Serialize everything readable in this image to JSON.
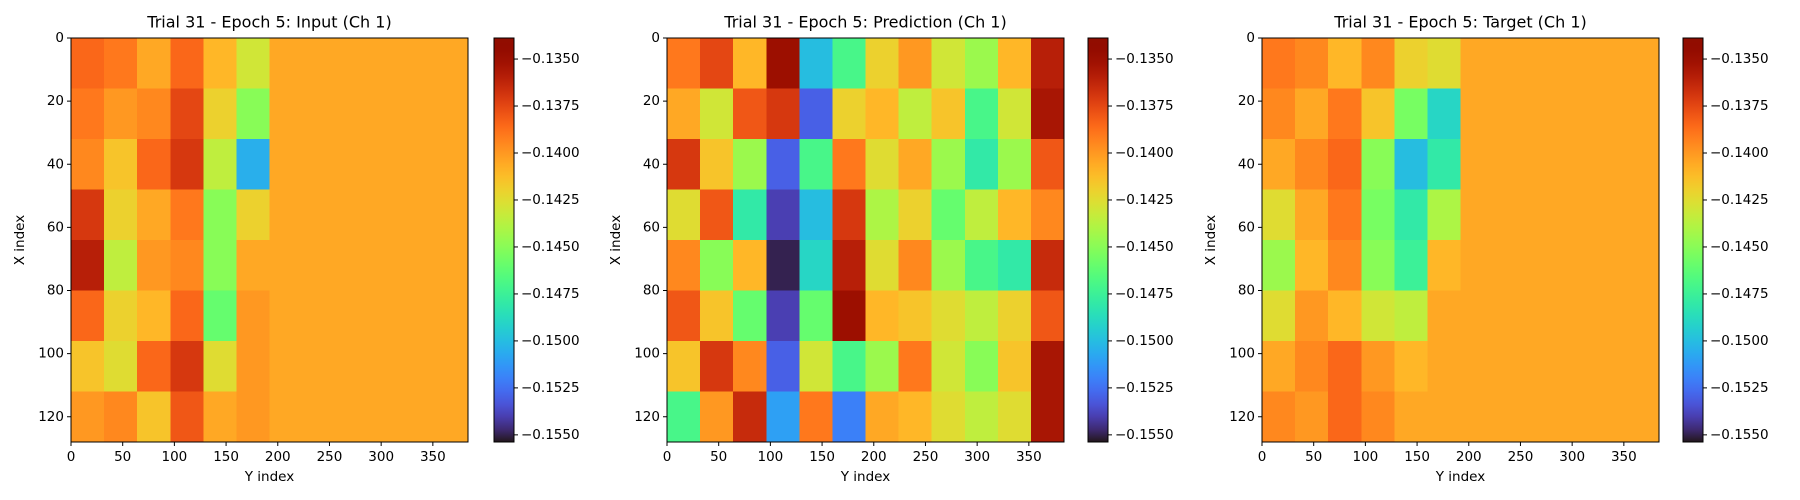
{
  "chart_data": [
    {
      "type": "heatmap",
      "title": "Trial 31 - Epoch 5: Input (Ch 1)",
      "x_label": "Y index",
      "y_label": "X index",
      "xlim": [
        0,
        384
      ],
      "ylim": [
        128,
        0
      ],
      "xticks": [
        0,
        50,
        100,
        150,
        200,
        250,
        300,
        350
      ],
      "yticks": [
        0,
        20,
        40,
        60,
        80,
        100,
        120
      ],
      "colormap": "turbo",
      "clim": [
        -0.15538,
        -0.13388
      ],
      "cticks": [
        {
          "value": -0.135,
          "label": "−0.1350"
        },
        {
          "value": -0.1375,
          "label": "−0.1375"
        },
        {
          "value": -0.14,
          "label": "−0.1400"
        },
        {
          "value": -0.1425,
          "label": "−0.1425"
        },
        {
          "value": -0.145,
          "label": "−0.1450"
        },
        {
          "value": -0.1475,
          "label": "−0.1475"
        },
        {
          "value": -0.15,
          "label": "−0.1500"
        },
        {
          "value": -0.1525,
          "label": "−0.1525"
        },
        {
          "value": -0.155,
          "label": "−0.1550"
        }
      ],
      "values": [
        [
          -0.1385,
          -0.139,
          -0.1405,
          -0.1385,
          -0.141,
          -0.143,
          -0.1405,
          -0.1405,
          -0.1405,
          -0.1405,
          -0.1405,
          -0.1405
        ],
        [
          -0.139,
          -0.14,
          -0.1395,
          -0.1375,
          -0.142,
          -0.145,
          -0.1405,
          -0.1405,
          -0.1405,
          -0.1405,
          -0.1405,
          -0.1405
        ],
        [
          -0.1395,
          -0.1415,
          -0.1385,
          -0.137,
          -0.1435,
          -0.1505,
          -0.1405,
          -0.1405,
          -0.1405,
          -0.1405,
          -0.1405,
          -0.1405
        ],
        [
          -0.137,
          -0.142,
          -0.1405,
          -0.139,
          -0.145,
          -0.142,
          -0.1405,
          -0.1405,
          -0.1405,
          -0.1405,
          -0.1405,
          -0.1405
        ],
        [
          -0.136,
          -0.1435,
          -0.14,
          -0.1395,
          -0.145,
          -0.1405,
          -0.1405,
          -0.1405,
          -0.1405,
          -0.1405,
          -0.1405,
          -0.1405
        ],
        [
          -0.1385,
          -0.142,
          -0.141,
          -0.1385,
          -0.146,
          -0.14,
          -0.1405,
          -0.1405,
          -0.1405,
          -0.1405,
          -0.1405,
          -0.1405
        ],
        [
          -0.1415,
          -0.1425,
          -0.1385,
          -0.137,
          -0.1425,
          -0.14,
          -0.1405,
          -0.1405,
          -0.1405,
          -0.1405,
          -0.1405,
          -0.1405
        ],
        [
          -0.14,
          -0.1395,
          -0.1415,
          -0.138,
          -0.1405,
          -0.14,
          -0.1405,
          -0.1405,
          -0.1405,
          -0.1405,
          -0.1405,
          -0.1405
        ]
      ]
    },
    {
      "type": "heatmap",
      "title": "Trial 31 - Epoch 5: Prediction (Ch 1)",
      "x_label": "Y index",
      "y_label": "X index",
      "xlim": [
        0,
        384
      ],
      "ylim": [
        128,
        0
      ],
      "xticks": [
        0,
        50,
        100,
        150,
        200,
        250,
        300,
        350
      ],
      "yticks": [
        0,
        20,
        40,
        60,
        80,
        100,
        120
      ],
      "colormap": "turbo",
      "clim": [
        -0.15538,
        -0.13388
      ],
      "cticks": [
        {
          "value": -0.135,
          "label": "−0.1350"
        },
        {
          "value": -0.1375,
          "label": "−0.1375"
        },
        {
          "value": -0.14,
          "label": "−0.1400"
        },
        {
          "value": -0.1425,
          "label": "−0.1425"
        },
        {
          "value": -0.145,
          "label": "−0.1450"
        },
        {
          "value": -0.1475,
          "label": "−0.1475"
        },
        {
          "value": -0.15,
          "label": "−0.1500"
        },
        {
          "value": -0.1525,
          "label": "−0.1525"
        },
        {
          "value": -0.155,
          "label": "−0.1550"
        }
      ],
      "values": [
        [
          -0.139,
          -0.1375,
          -0.141,
          -0.135,
          -0.15,
          -0.147,
          -0.142,
          -0.14,
          -0.143,
          -0.1445,
          -0.141,
          -0.136
        ],
        [
          -0.1405,
          -0.143,
          -0.138,
          -0.137,
          -0.153,
          -0.142,
          -0.141,
          -0.1435,
          -0.1415,
          -0.147,
          -0.143,
          -0.1355
        ],
        [
          -0.137,
          -0.1415,
          -0.1445,
          -0.153,
          -0.147,
          -0.139,
          -0.1425,
          -0.1405,
          -0.1445,
          -0.148,
          -0.1445,
          -0.138
        ],
        [
          -0.1425,
          -0.138,
          -0.148,
          -0.154,
          -0.15,
          -0.137,
          -0.144,
          -0.142,
          -0.146,
          -0.1435,
          -0.141,
          -0.1395
        ],
        [
          -0.1395,
          -0.145,
          -0.141,
          -0.155,
          -0.149,
          -0.136,
          -0.1425,
          -0.1395,
          -0.1445,
          -0.147,
          -0.148,
          -0.1365
        ],
        [
          -0.138,
          -0.1415,
          -0.146,
          -0.154,
          -0.146,
          -0.135,
          -0.141,
          -0.1415,
          -0.1425,
          -0.1435,
          -0.142,
          -0.138
        ],
        [
          -0.1415,
          -0.137,
          -0.1395,
          -0.153,
          -0.143,
          -0.147,
          -0.1445,
          -0.139,
          -0.143,
          -0.145,
          -0.1415,
          -0.1355
        ],
        [
          -0.147,
          -0.14,
          -0.1365,
          -0.151,
          -0.139,
          -0.152,
          -0.1405,
          -0.141,
          -0.1425,
          -0.1435,
          -0.1425,
          -0.1355
        ]
      ]
    },
    {
      "type": "heatmap",
      "title": "Trial 31 - Epoch 5: Target (Ch 1)",
      "x_label": "Y index",
      "y_label": "X index",
      "xlim": [
        0,
        384
      ],
      "ylim": [
        128,
        0
      ],
      "xticks": [
        0,
        50,
        100,
        150,
        200,
        250,
        300,
        350
      ],
      "yticks": [
        0,
        20,
        40,
        60,
        80,
        100,
        120
      ],
      "colormap": "turbo",
      "clim": [
        -0.15538,
        -0.13388
      ],
      "cticks": [
        {
          "value": -0.135,
          "label": "−0.1350"
        },
        {
          "value": -0.1375,
          "label": "−0.1375"
        },
        {
          "value": -0.14,
          "label": "−0.1400"
        },
        {
          "value": -0.1425,
          "label": "−0.1425"
        },
        {
          "value": -0.145,
          "label": "−0.1450"
        },
        {
          "value": -0.1475,
          "label": "−0.1475"
        },
        {
          "value": -0.15,
          "label": "−0.1500"
        },
        {
          "value": -0.1525,
          "label": "−0.1525"
        },
        {
          "value": -0.155,
          "label": "−0.1550"
        }
      ],
      "values": [
        [
          -0.139,
          -0.1395,
          -0.141,
          -0.1395,
          -0.142,
          -0.1425,
          -0.1405,
          -0.1405,
          -0.1405,
          -0.1405,
          -0.1405,
          -0.1405
        ],
        [
          -0.1395,
          -0.1405,
          -0.139,
          -0.1415,
          -0.1455,
          -0.149,
          -0.1405,
          -0.1405,
          -0.1405,
          -0.1405,
          -0.1405,
          -0.1405
        ],
        [
          -0.1405,
          -0.1395,
          -0.1385,
          -0.145,
          -0.15,
          -0.148,
          -0.1405,
          -0.1405,
          -0.1405,
          -0.1405,
          -0.1405,
          -0.1405
        ],
        [
          -0.1425,
          -0.1405,
          -0.139,
          -0.1455,
          -0.148,
          -0.144,
          -0.1405,
          -0.1405,
          -0.1405,
          -0.1405,
          -0.1405,
          -0.1405
        ],
        [
          -0.1445,
          -0.141,
          -0.1395,
          -0.145,
          -0.1475,
          -0.141,
          -0.1405,
          -0.1405,
          -0.1405,
          -0.1405,
          -0.1405,
          -0.1405
        ],
        [
          -0.1425,
          -0.14,
          -0.141,
          -0.143,
          -0.1435,
          -0.1405,
          -0.1405,
          -0.1405,
          -0.1405,
          -0.1405,
          -0.1405,
          -0.1405
        ],
        [
          -0.1405,
          -0.1395,
          -0.1385,
          -0.14,
          -0.141,
          -0.1405,
          -0.1405,
          -0.1405,
          -0.1405,
          -0.1405,
          -0.1405,
          -0.1405
        ],
        [
          -0.1395,
          -0.14,
          -0.1385,
          -0.1395,
          -0.1405,
          -0.1405,
          -0.1405,
          -0.1405,
          -0.1405,
          -0.1405,
          -0.1405,
          -0.1405
        ]
      ]
    }
  ]
}
